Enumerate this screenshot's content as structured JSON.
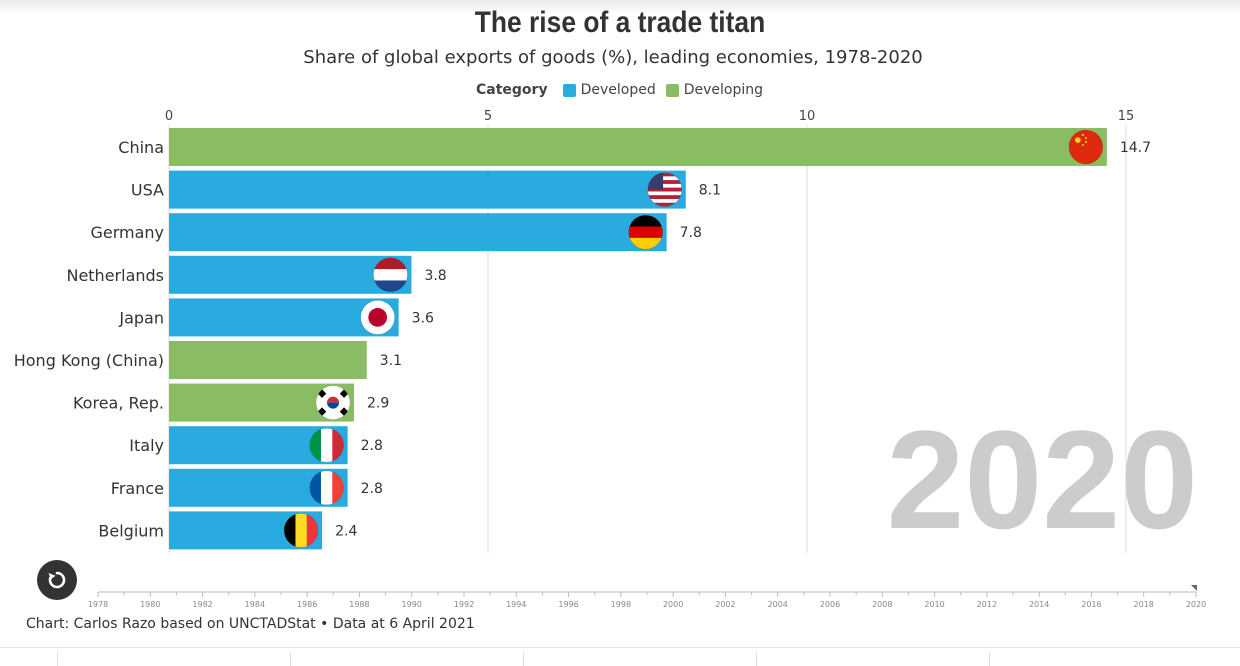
{
  "header": {
    "title": "The rise of a trade titan",
    "subtitle": "Share of global exports of goods (%), leading economies, 1978-2020"
  },
  "legend": {
    "title": "Category",
    "items": [
      {
        "label": "Developed",
        "color": "#29abe0"
      },
      {
        "label": "Developing",
        "color": "#8abd63"
      }
    ]
  },
  "year_display": "2020",
  "controls": {
    "replay_icon": "replay-icon"
  },
  "timeline": {
    "labels": [
      "1978",
      "1980",
      "1982",
      "1984",
      "1986",
      "1988",
      "1990",
      "1992",
      "1994",
      "1996",
      "1998",
      "2000",
      "2002",
      "2004",
      "2006",
      "2008",
      "2010",
      "2012",
      "2014",
      "2016",
      "2018",
      "2020"
    ],
    "current": "2020"
  },
  "footer": {
    "source": "Chart: Carlos Razo based on UNCTADStat • Data at 6 April 2021"
  },
  "chart_data": {
    "type": "bar",
    "orientation": "horizontal",
    "title": "The rise of a trade titan",
    "subtitle": "Share of global exports of goods (%), leading economies, 1978-2020",
    "year": "2020",
    "xlim": [
      0,
      15
    ],
    "x_ticks": [
      0,
      5,
      10,
      15
    ],
    "grid": true,
    "legend_position": "top",
    "categories": [
      "China",
      "USA",
      "Germany",
      "Netherlands",
      "Japan",
      "Hong Kong (China)",
      "Korea, Rep.",
      "Italy",
      "France",
      "Belgium"
    ],
    "values": [
      14.7,
      8.1,
      7.8,
      3.8,
      3.6,
      3.1,
      2.9,
      2.8,
      2.8,
      2.4
    ],
    "value_labels": [
      "14.7",
      "8.1",
      "7.8",
      "3.8",
      "3.6",
      "3.1",
      "2.9",
      "2.8",
      "2.8",
      "2.4"
    ],
    "group": [
      "Developing",
      "Developed",
      "Developed",
      "Developed",
      "Developed",
      "Developing",
      "Developing",
      "Developed",
      "Developed",
      "Developed"
    ],
    "flags": [
      "china-flag-icon",
      "usa-flag-icon",
      "germany-flag-icon",
      "netherlands-flag-icon",
      "japan-flag-icon",
      "",
      "korea-flag-icon",
      "italy-flag-icon",
      "france-flag-icon",
      "belgium-flag-icon"
    ],
    "colors": {
      "Developed": "#29abe0",
      "Developing": "#8abd63"
    }
  }
}
